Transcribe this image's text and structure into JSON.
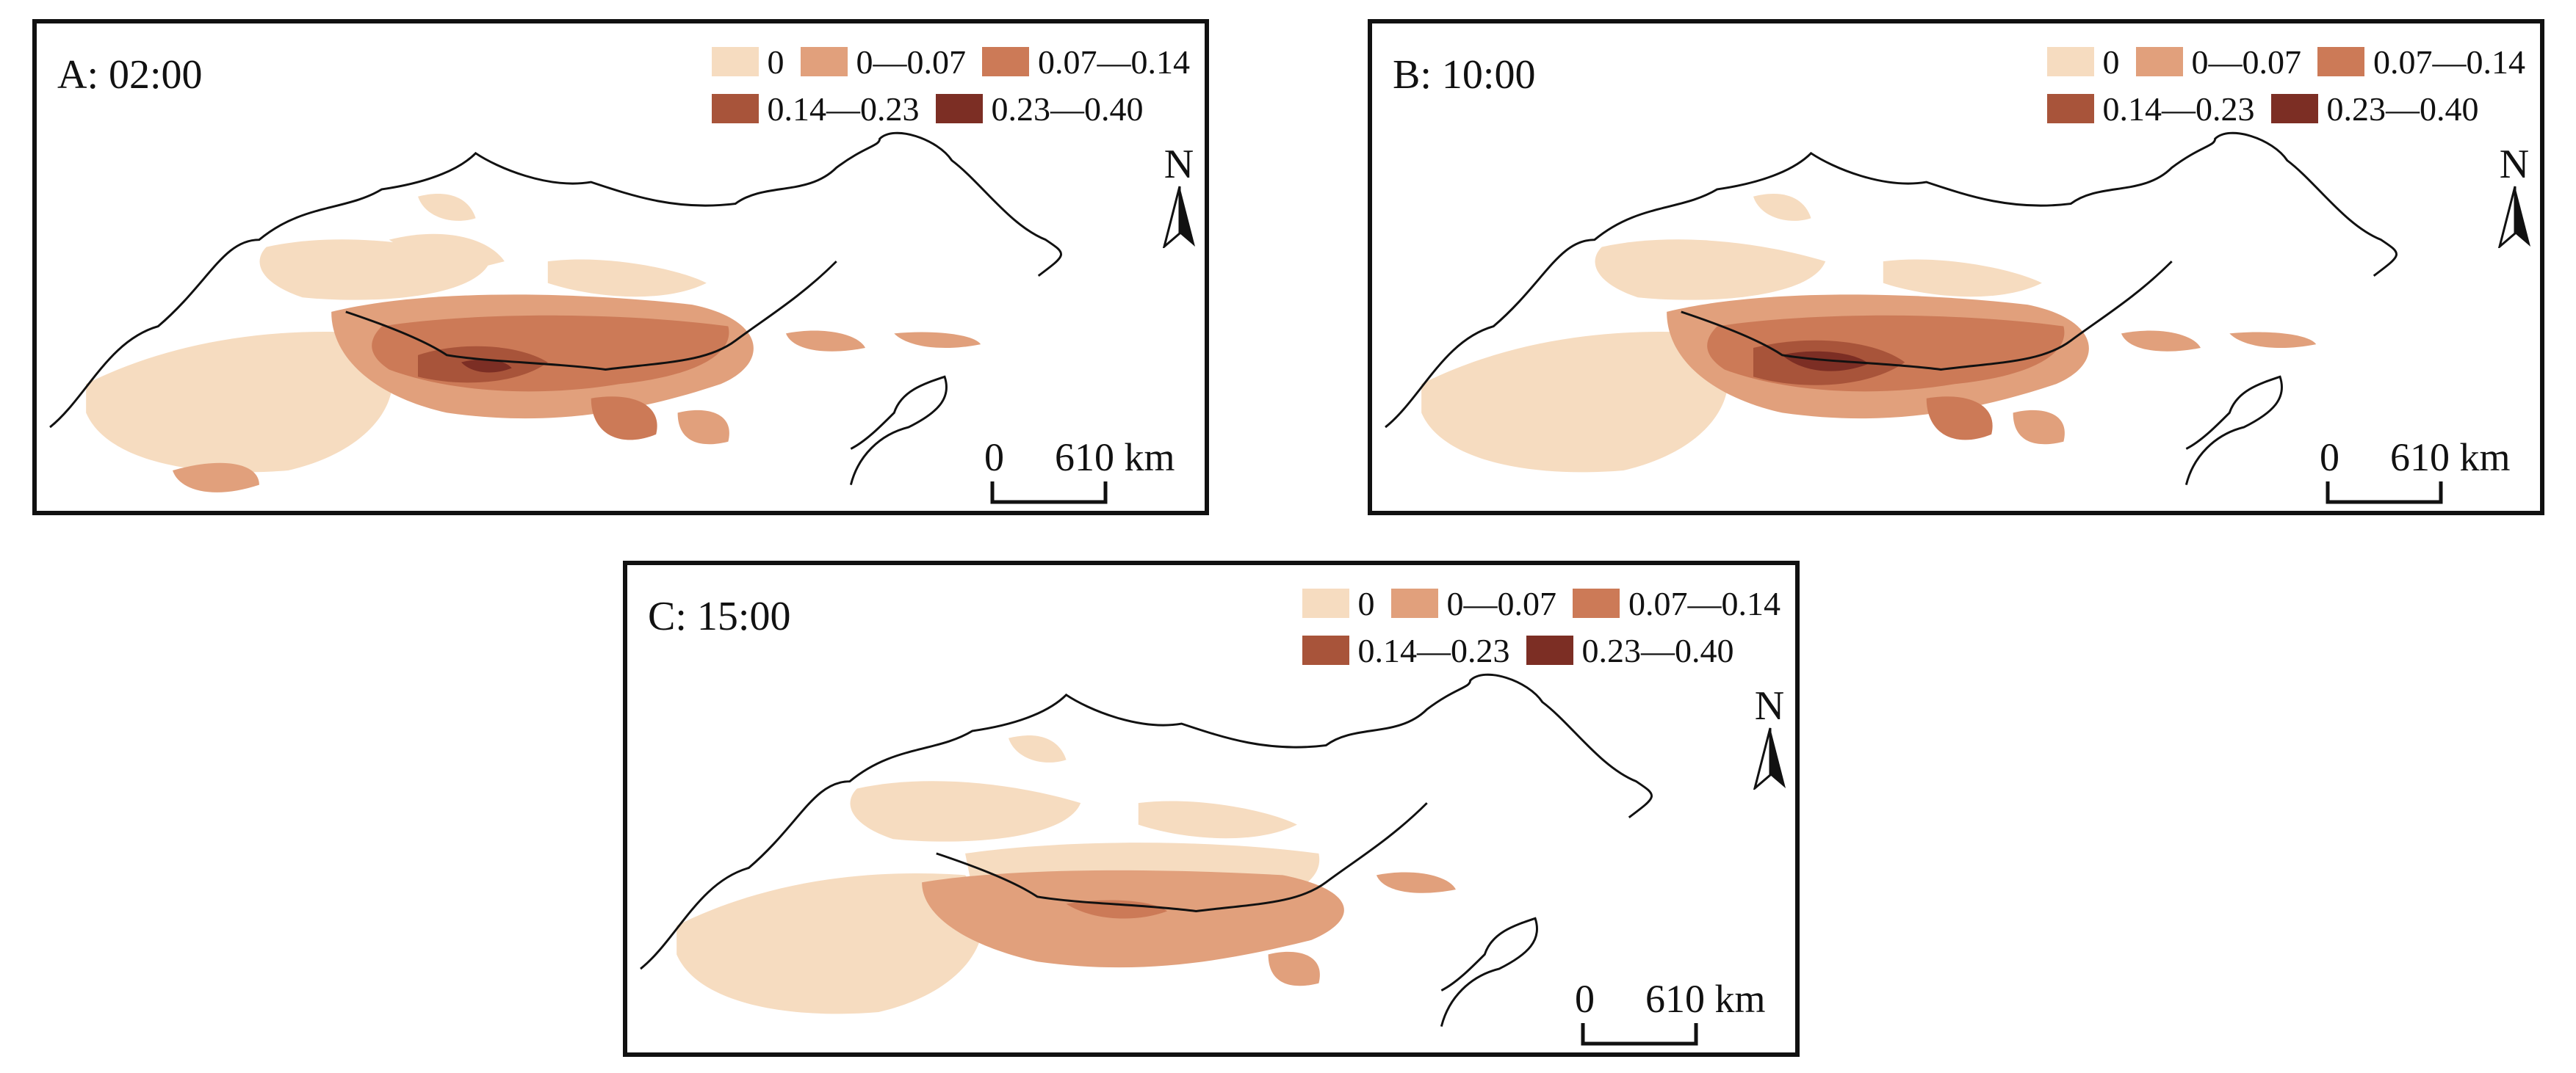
{
  "legend": {
    "classes": [
      {
        "label": "0",
        "color": "#f6dcc0"
      },
      {
        "label": "0—0.07",
        "color": "#e1a07c"
      },
      {
        "label": "0.07—0.14",
        "color": "#cc7a57"
      },
      {
        "label": "0.14—0.23",
        "color": "#a8543a"
      },
      {
        "label": "0.23—0.40",
        "color": "#7c2e24"
      }
    ]
  },
  "panels": [
    {
      "label": "A: 02:00"
    },
    {
      "label": "B: 10:00"
    },
    {
      "label": "C: 15:00"
    }
  ],
  "north_label": "N",
  "scale": {
    "zero": "0",
    "distance": "610 km"
  }
}
